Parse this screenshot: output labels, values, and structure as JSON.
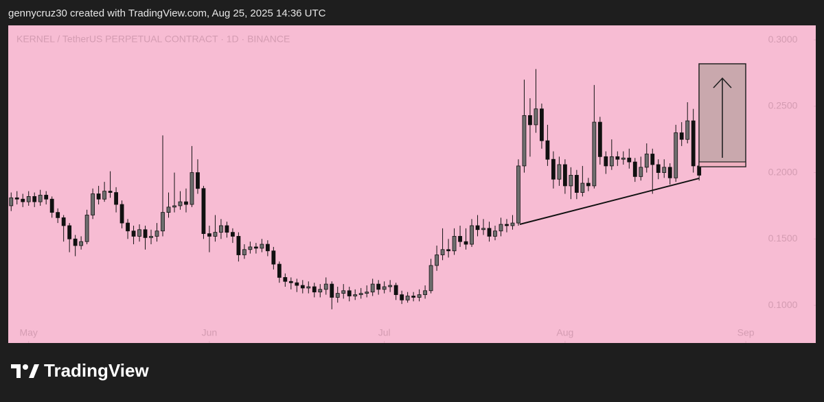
{
  "header": "gennycruz30 created with TradingView.com, Aug 25, 2025 14:36 UTC",
  "chart_data": {
    "type": "candlestick",
    "title": "KERNEL / TetherUS PERPETUAL CONTRACT · 1D · BINANCE",
    "open": [
      0.175,
      0.181,
      0.18,
      0.178,
      0.182,
      0.178,
      0.183,
      0.18,
      0.17,
      0.166,
      0.16,
      0.15,
      0.145,
      0.148,
      0.168,
      0.184,
      0.18,
      0.186,
      0.185,
      0.176,
      0.162,
      0.156,
      0.152,
      0.157,
      0.151,
      0.152,
      0.156,
      0.17,
      0.174,
      0.175,
      0.178,
      0.176,
      0.2,
      0.188,
      0.154,
      0.152,
      0.155,
      0.16,
      0.155,
      0.152,
      0.138,
      0.142,
      0.144,
      0.143,
      0.146,
      0.141,
      0.131,
      0.121,
      0.118,
      0.117,
      0.115,
      0.113,
      0.114,
      0.11,
      0.112,
      0.116,
      0.106,
      0.109,
      0.111,
      0.107,
      0.108,
      0.109,
      0.11,
      0.116,
      0.112,
      0.114,
      0.115,
      0.108,
      0.104,
      0.107,
      0.106,
      0.108,
      0.111,
      0.13,
      0.138,
      0.142,
      0.141,
      0.152,
      0.148,
      0.146,
      0.16,
      0.157,
      0.158,
      0.152,
      0.156,
      0.161,
      0.16,
      0.162,
      0.205,
      0.243,
      0.236,
      0.248,
      0.224,
      0.21,
      0.195,
      0.206,
      0.19,
      0.198,
      0.185,
      0.192,
      0.19,
      0.238,
      0.212,
      0.205,
      0.212,
      0.21,
      0.211,
      0.208,
      0.197,
      0.204,
      0.214,
      0.206,
      0.2,
      0.204,
      0.196,
      0.23,
      0.225,
      0.239,
      0.205
    ],
    "high": [
      0.185,
      0.186,
      0.184,
      0.186,
      0.185,
      0.187,
      0.186,
      0.182,
      0.173,
      0.168,
      0.162,
      0.153,
      0.152,
      0.172,
      0.188,
      0.19,
      0.193,
      0.201,
      0.189,
      0.179,
      0.165,
      0.16,
      0.161,
      0.16,
      0.157,
      0.162,
      0.228,
      0.185,
      0.2,
      0.186,
      0.188,
      0.22,
      0.21,
      0.19,
      0.16,
      0.168,
      0.165,
      0.163,
      0.158,
      0.155,
      0.146,
      0.148,
      0.147,
      0.15,
      0.149,
      0.144,
      0.133,
      0.124,
      0.121,
      0.12,
      0.119,
      0.118,
      0.117,
      0.116,
      0.121,
      0.118,
      0.114,
      0.116,
      0.114,
      0.112,
      0.113,
      0.115,
      0.12,
      0.119,
      0.118,
      0.119,
      0.117,
      0.111,
      0.11,
      0.11,
      0.112,
      0.115,
      0.135,
      0.145,
      0.158,
      0.15,
      0.158,
      0.16,
      0.158,
      0.165,
      0.168,
      0.165,
      0.163,
      0.16,
      0.166,
      0.165,
      0.168,
      0.21,
      0.27,
      0.256,
      0.278,
      0.252,
      0.236,
      0.216,
      0.212,
      0.21,
      0.204,
      0.202,
      0.205,
      0.196,
      0.266,
      0.242,
      0.216,
      0.225,
      0.216,
      0.216,
      0.218,
      0.211,
      0.212,
      0.222,
      0.218,
      0.21,
      0.21,
      0.207,
      0.236,
      0.238,
      0.253,
      0.248,
      0.207
    ],
    "low": [
      0.171,
      0.176,
      0.174,
      0.175,
      0.174,
      0.175,
      0.176,
      0.166,
      0.162,
      0.148,
      0.14,
      0.137,
      0.142,
      0.146,
      0.165,
      0.176,
      0.178,
      0.181,
      0.17,
      0.158,
      0.15,
      0.146,
      0.148,
      0.142,
      0.146,
      0.148,
      0.152,
      0.166,
      0.17,
      0.172,
      0.17,
      0.174,
      0.184,
      0.15,
      0.14,
      0.148,
      0.15,
      0.151,
      0.147,
      0.133,
      0.135,
      0.139,
      0.139,
      0.14,
      0.137,
      0.127,
      0.117,
      0.114,
      0.112,
      0.11,
      0.109,
      0.109,
      0.106,
      0.106,
      0.108,
      0.097,
      0.102,
      0.105,
      0.103,
      0.104,
      0.105,
      0.106,
      0.107,
      0.108,
      0.109,
      0.11,
      0.104,
      0.101,
      0.102,
      0.103,
      0.103,
      0.105,
      0.109,
      0.126,
      0.134,
      0.136,
      0.138,
      0.144,
      0.142,
      0.144,
      0.152,
      0.153,
      0.148,
      0.149,
      0.152,
      0.155,
      0.157,
      0.16,
      0.2,
      0.212,
      0.23,
      0.218,
      0.205,
      0.188,
      0.19,
      0.184,
      0.18,
      0.18,
      0.182,
      0.186,
      0.188,
      0.206,
      0.199,
      0.202,
      0.205,
      0.206,
      0.203,
      0.193,
      0.194,
      0.2,
      0.184,
      0.195,
      0.196,
      0.191,
      0.193,
      0.22,
      0.222,
      0.2,
      0.194
    ],
    "close": [
      0.181,
      0.18,
      0.178,
      0.182,
      0.178,
      0.183,
      0.18,
      0.17,
      0.166,
      0.16,
      0.15,
      0.145,
      0.148,
      0.168,
      0.184,
      0.18,
      0.186,
      0.185,
      0.176,
      0.162,
      0.156,
      0.152,
      0.157,
      0.151,
      0.152,
      0.156,
      0.17,
      0.174,
      0.175,
      0.178,
      0.176,
      0.2,
      0.188,
      0.154,
      0.152,
      0.155,
      0.16,
      0.155,
      0.152,
      0.138,
      0.142,
      0.144,
      0.143,
      0.146,
      0.141,
      0.131,
      0.121,
      0.118,
      0.117,
      0.115,
      0.113,
      0.114,
      0.11,
      0.112,
      0.116,
      0.106,
      0.109,
      0.111,
      0.107,
      0.108,
      0.109,
      0.11,
      0.116,
      0.112,
      0.114,
      0.115,
      0.108,
      0.104,
      0.107,
      0.106,
      0.108,
      0.111,
      0.13,
      0.138,
      0.142,
      0.141,
      0.152,
      0.148,
      0.146,
      0.16,
      0.157,
      0.158,
      0.152,
      0.156,
      0.161,
      0.16,
      0.162,
      0.205,
      0.243,
      0.236,
      0.248,
      0.224,
      0.21,
      0.195,
      0.206,
      0.19,
      0.198,
      0.185,
      0.192,
      0.19,
      0.238,
      0.212,
      0.205,
      0.212,
      0.21,
      0.211,
      0.208,
      0.197,
      0.204,
      0.214,
      0.206,
      0.2,
      0.204,
      0.196,
      0.23,
      0.225,
      0.239,
      0.205,
      0.198
    ],
    "up_color": "#6e6e6e",
    "down_color": "#111111",
    "xlim": [
      -0.5,
      138
    ],
    "xticks": [
      {
        "value": 3,
        "label": "May"
      },
      {
        "value": 34,
        "label": "Jun"
      },
      {
        "value": 64,
        "label": "Jul"
      },
      {
        "value": 95,
        "label": "Aug"
      },
      {
        "value": 126,
        "label": "Sep"
      }
    ],
    "ylim": [
      0.0716,
      0.3109
    ],
    "yticks": [
      {
        "value": 0.1,
        "label": "0.1000"
      },
      {
        "value": 0.15,
        "label": "0.1500"
      },
      {
        "value": 0.2,
        "label": "0.2000"
      },
      {
        "value": 0.25,
        "label": "0.2500"
      },
      {
        "value": 0.3,
        "label": "0.3000"
      }
    ]
  },
  "footer": {
    "brand": "TradingView"
  }
}
